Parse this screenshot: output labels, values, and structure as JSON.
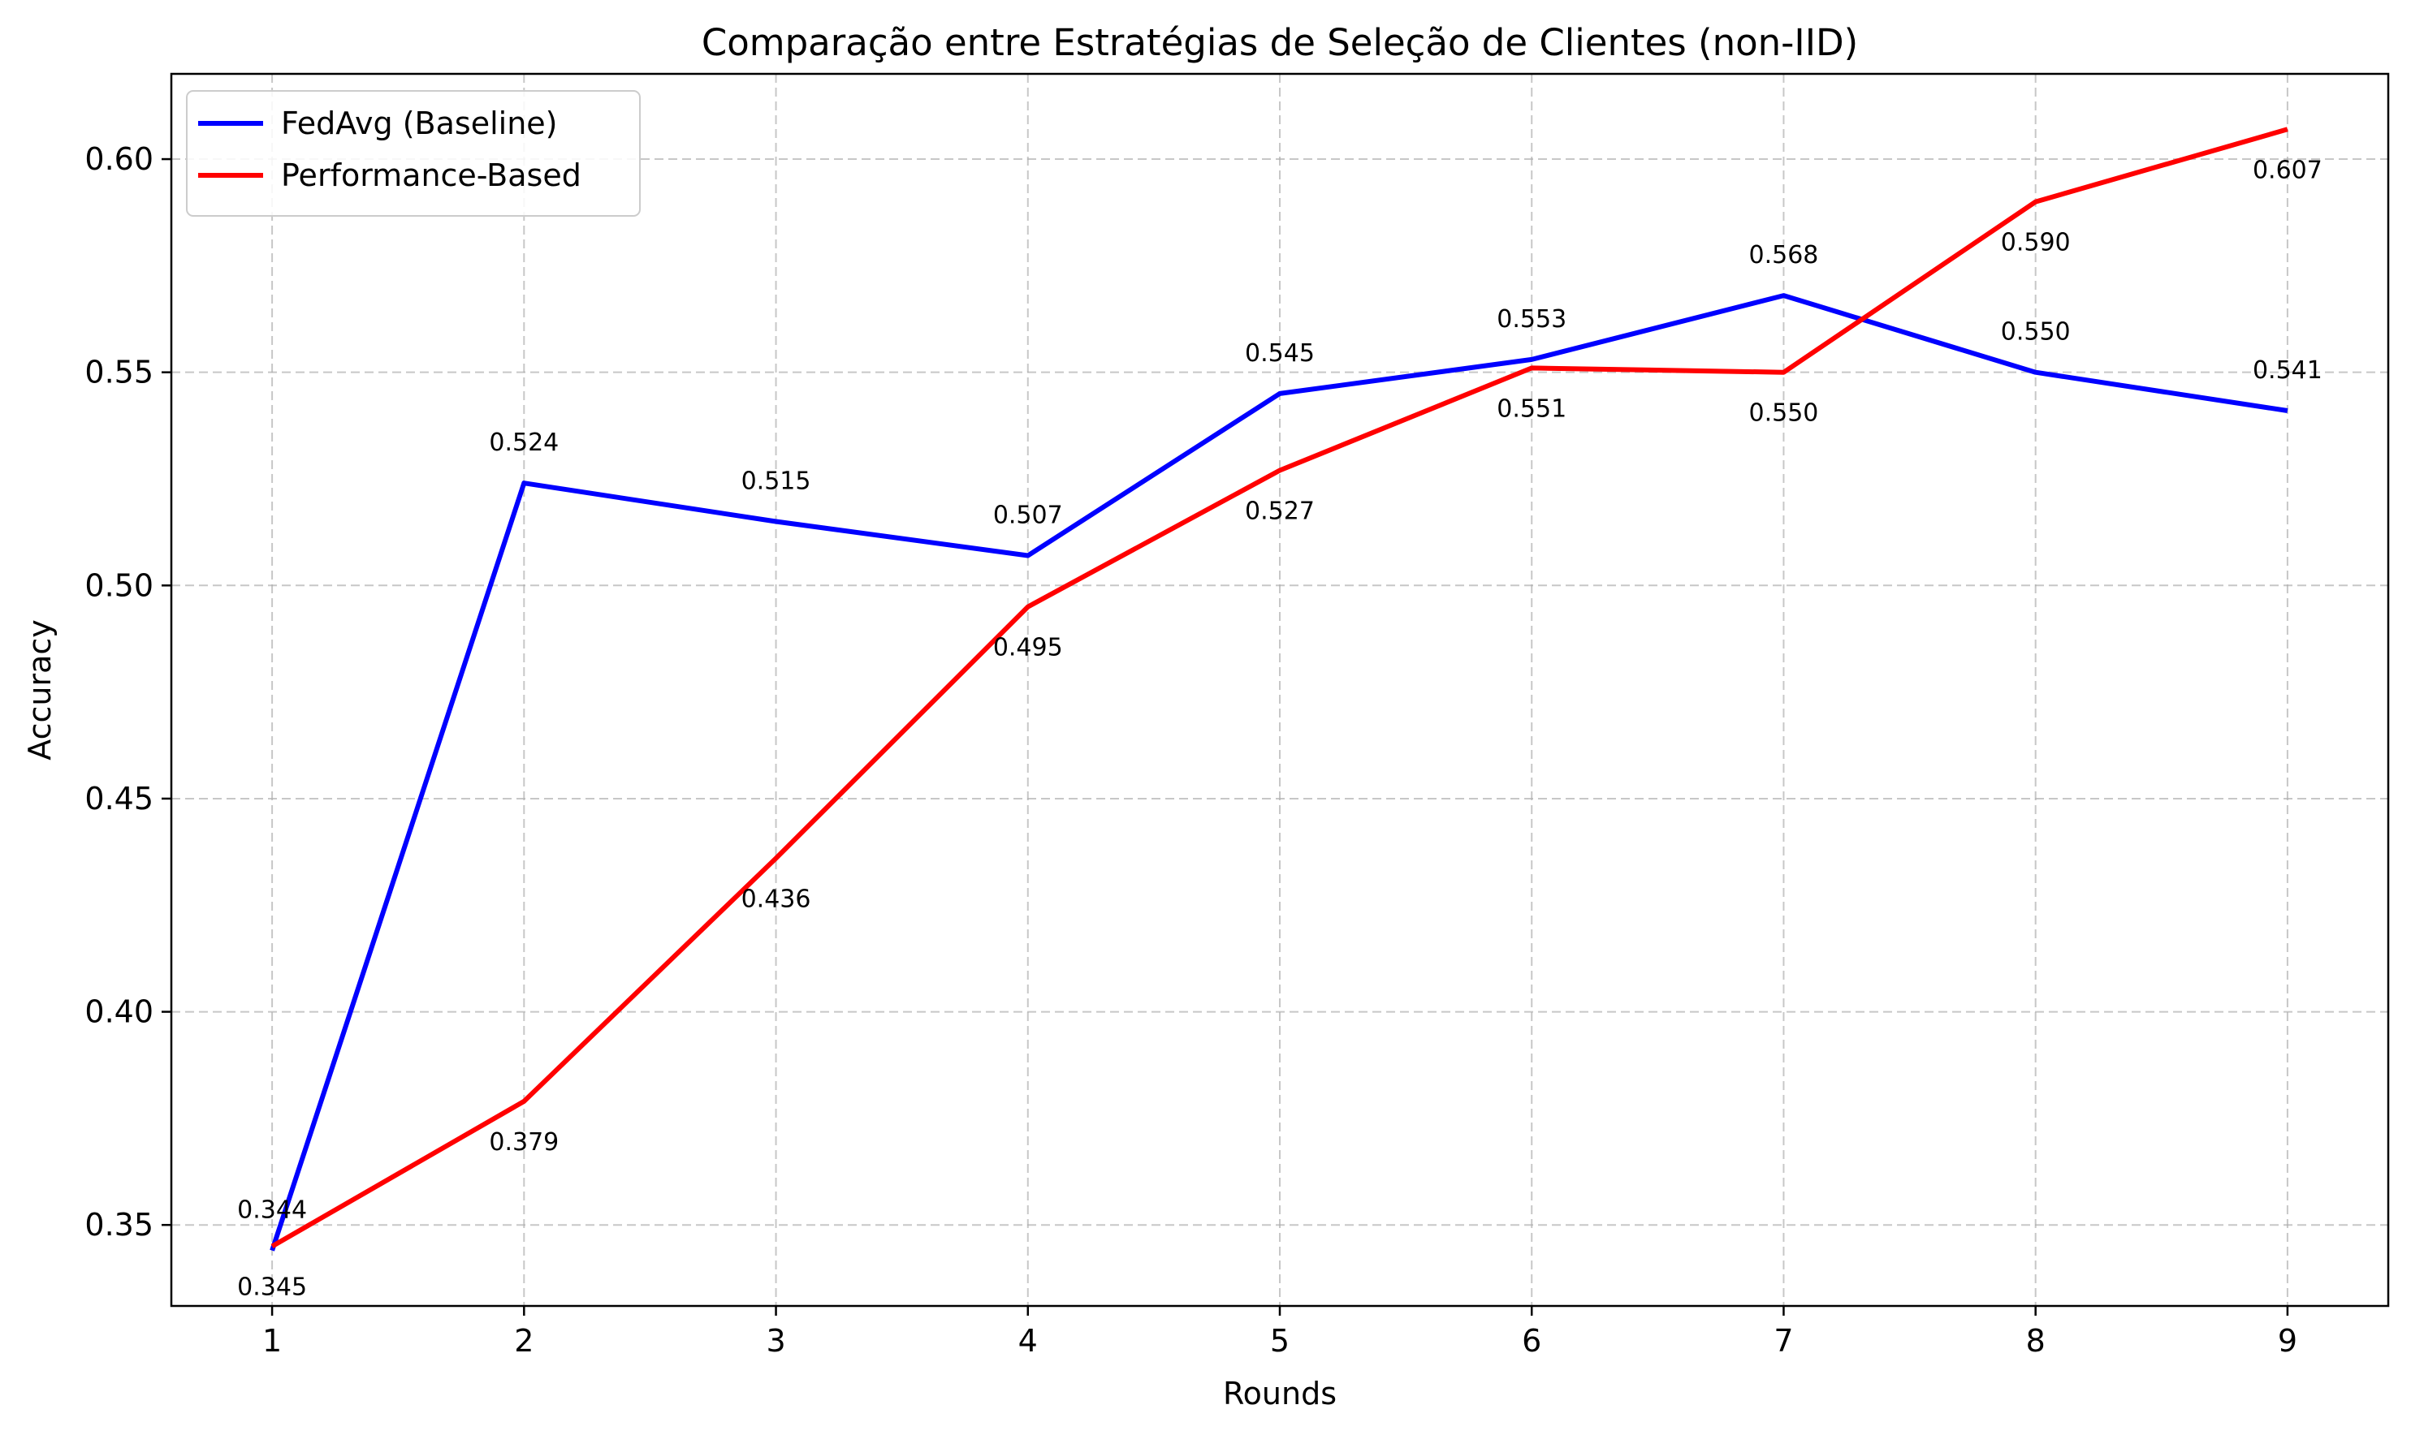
{
  "chart_data": {
    "type": "line",
    "title": "Comparação entre Estratégias de Seleção de Clientes (non-IID)",
    "xlabel": "Rounds",
    "ylabel": "Accuracy",
    "x": [
      1,
      2,
      3,
      4,
      5,
      6,
      7,
      8,
      9
    ],
    "xlim": [
      0.6,
      9.4
    ],
    "ylim": [
      0.331,
      0.62
    ],
    "xticks": [
      "1",
      "2",
      "3",
      "4",
      "5",
      "6",
      "7",
      "8",
      "9"
    ],
    "yticks": [
      "0.35",
      "0.40",
      "0.45",
      "0.50",
      "0.55",
      "0.60"
    ],
    "grid": true,
    "legend_position": "top-left",
    "series": [
      {
        "name": "FedAvg (Baseline)",
        "color": "#0000ff",
        "values": [
          0.344,
          0.524,
          0.515,
          0.507,
          0.545,
          0.553,
          0.568,
          0.55,
          0.541
        ],
        "labels": [
          "0.344",
          "0.524",
          "0.515",
          "0.507",
          "0.545",
          "0.553",
          "0.568",
          "0.550",
          "0.541"
        ],
        "label_side": [
          "above",
          "above",
          "above",
          "above",
          "above",
          "above",
          "above",
          "above",
          "above"
        ]
      },
      {
        "name": "Performance-Based",
        "color": "#ff0000",
        "values": [
          0.345,
          0.379,
          0.436,
          0.495,
          0.527,
          0.551,
          0.55,
          0.59,
          0.607
        ],
        "labels": [
          "0.345",
          "0.379",
          "0.436",
          "0.495",
          "0.527",
          "0.551",
          "0.550",
          "0.590",
          "0.607"
        ],
        "label_side": [
          "below",
          "below",
          "below",
          "below",
          "below",
          "below",
          "below",
          "below",
          "below"
        ]
      }
    ]
  }
}
